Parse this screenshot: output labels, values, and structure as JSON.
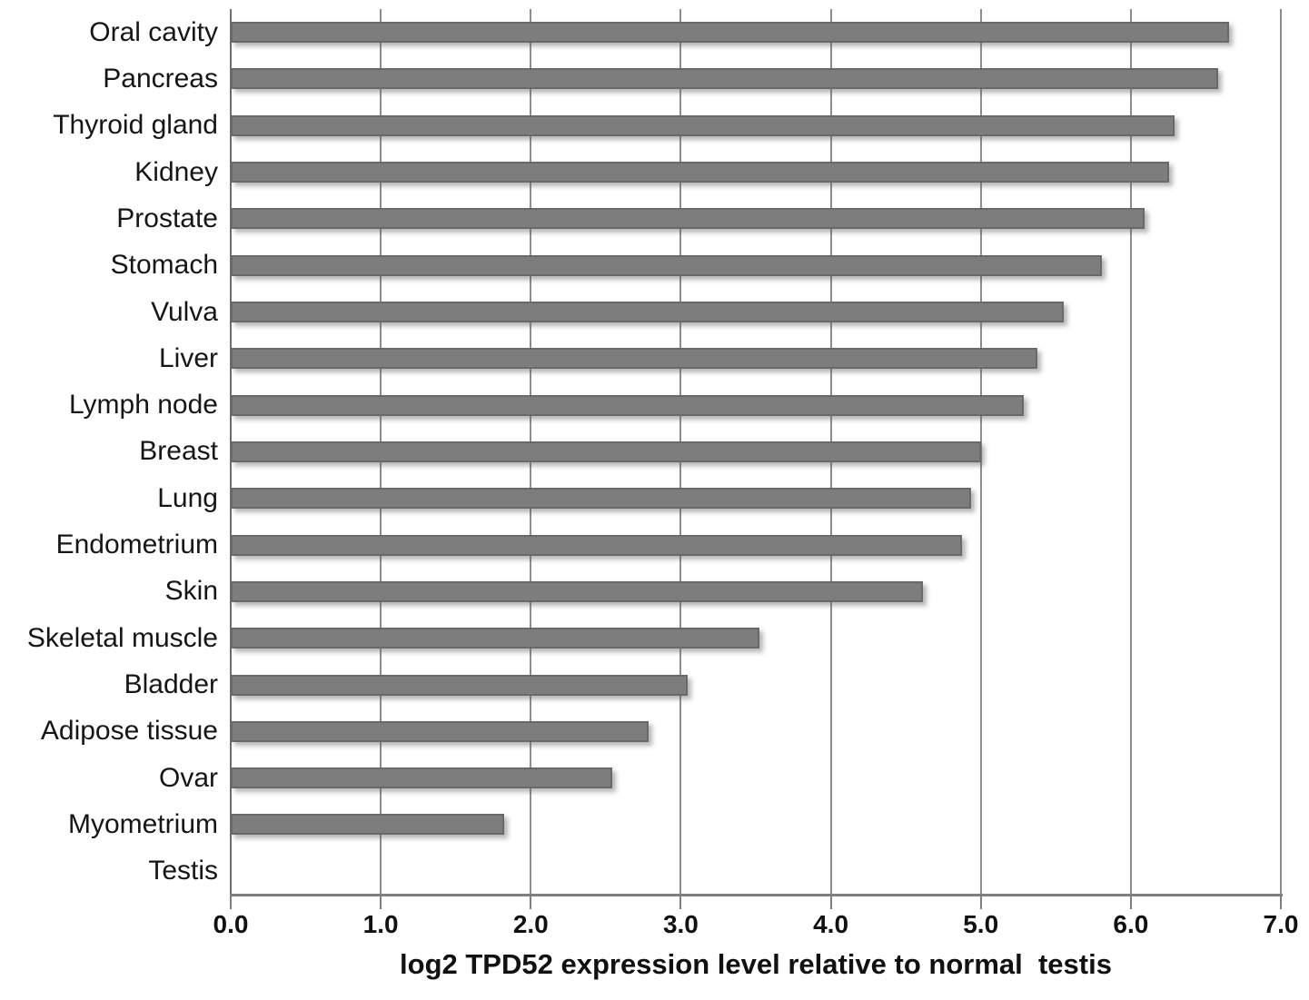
{
  "chart_data": {
    "type": "bar",
    "orientation": "horizontal",
    "title": "",
    "xlabel": "log2 TPD52 expression level relative to normal  testis",
    "ylabel": "",
    "categories": [
      "Oral cavity",
      "Pancreas",
      "Thyroid gland",
      "Kidney",
      "Prostate",
      "Stomach",
      "Vulva",
      "Liver",
      "Lymph node",
      "Breast",
      "Lung",
      "Endometrium",
      "Skin",
      "Skeletal muscle",
      "Bladder",
      "Adipose tissue",
      "Ovar",
      "Myometrium",
      "Testis"
    ],
    "values": [
      6.63,
      6.56,
      6.27,
      6.23,
      6.07,
      5.78,
      5.53,
      5.35,
      5.26,
      4.98,
      4.91,
      4.85,
      4.59,
      3.5,
      3.02,
      2.76,
      2.52,
      1.8,
      0
    ],
    "xlim": [
      0,
      7
    ],
    "xtick_values": [
      0,
      1,
      2,
      3,
      4,
      5,
      6,
      7
    ],
    "xtick_labels": [
      "0.0",
      "1.0",
      "2.0",
      "3.0",
      "4.0",
      "5.0",
      "6.0",
      "7.0"
    ],
    "grid": "vertical-gridlines-on",
    "legend": "none",
    "bar_color": "#7d7d7d",
    "bar_border_color": "#696969",
    "background_color": "#ffffff"
  }
}
